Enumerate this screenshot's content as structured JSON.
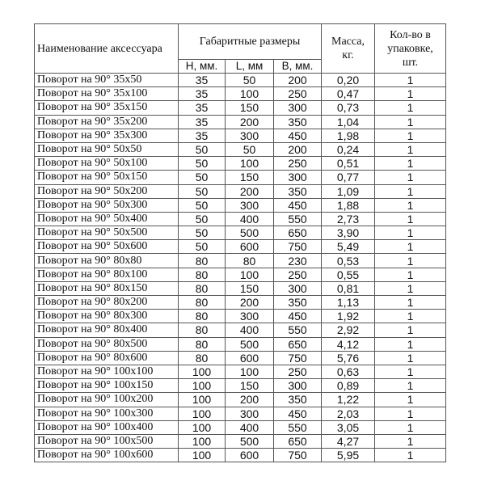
{
  "header": {
    "name": "Наименование аксессуара",
    "dimensions": "Габаритные размеры",
    "mass": "Масса, кг.",
    "qty": "Кол-во в упаковке, шт.",
    "h_label": "H, мм.",
    "l_label": "L, мм",
    "b_label": "B, мм."
  },
  "rows": [
    [
      "Поворот на 90° 35x50",
      "35",
      "50",
      "200",
      "0,20",
      "1"
    ],
    [
      "Поворот на 90° 35x100",
      "35",
      "100",
      "250",
      "0,47",
      "1"
    ],
    [
      "Поворот на 90° 35x150",
      "35",
      "150",
      "300",
      "0,73",
      "1"
    ],
    [
      "Поворот на 90° 35x200",
      "35",
      "200",
      "350",
      "1,04",
      "1"
    ],
    [
      "Поворот на 90° 35x300",
      "35",
      "300",
      "450",
      "1,98",
      "1"
    ],
    [
      "Поворот на 90° 50x50",
      "50",
      "50",
      "200",
      "0,24",
      "1"
    ],
    [
      "Поворот на 90° 50x100",
      "50",
      "100",
      "250",
      "0,51",
      "1"
    ],
    [
      "Поворот на 90° 50x150",
      "50",
      "150",
      "300",
      "0,77",
      "1"
    ],
    [
      "Поворот на 90° 50x200",
      "50",
      "200",
      "350",
      "1,09",
      "1"
    ],
    [
      "Поворот на 90° 50x300",
      "50",
      "300",
      "450",
      "1,88",
      "1"
    ],
    [
      "Поворот на 90° 50x400",
      "50",
      "400",
      "550",
      "2,73",
      "1"
    ],
    [
      "Поворот на 90° 50x500",
      "50",
      "500",
      "650",
      "3,90",
      "1"
    ],
    [
      "Поворот на 90° 50x600",
      "50",
      "600",
      "750",
      "5,49",
      "1"
    ],
    [
      "Поворот на 90° 80x80",
      "80",
      "80",
      "230",
      "0,53",
      "1"
    ],
    [
      "Поворот на 90° 80x100",
      "80",
      "100",
      "250",
      "0,55",
      "1"
    ],
    [
      "Поворот на 90° 80x150",
      "80",
      "150",
      "300",
      "0,81",
      "1"
    ],
    [
      "Поворот на 90° 80x200",
      "80",
      "200",
      "350",
      "1,13",
      "1"
    ],
    [
      "Поворот на 90° 80x300",
      "80",
      "300",
      "450",
      "1,92",
      "1"
    ],
    [
      "Поворот на 90° 80x400",
      "80",
      "400",
      "550",
      "2,92",
      "1"
    ],
    [
      "Поворот на 90° 80x500",
      "80",
      "500",
      "650",
      "4,12",
      "1"
    ],
    [
      "Поворот на 90° 80x600",
      "80",
      "600",
      "750",
      "5,76",
      "1"
    ],
    [
      "Поворот на 90° 100x100",
      "100",
      "100",
      "250",
      "0,63",
      "1"
    ],
    [
      "Поворот на 90° 100x150",
      "100",
      "150",
      "300",
      "0,89",
      "1"
    ],
    [
      "Поворот на 90° 100x200",
      "100",
      "200",
      "350",
      "1,22",
      "1"
    ],
    [
      "Поворот на 90° 100x300",
      "100",
      "300",
      "450",
      "2,03",
      "1"
    ],
    [
      "Поворот на 90° 100x400",
      "100",
      "400",
      "550",
      "3,05",
      "1"
    ],
    [
      "Поворот на 90° 100x500",
      "100",
      "500",
      "650",
      "4,27",
      "1"
    ],
    [
      "Поворот на 90° 100x600",
      "100",
      "600",
      "750",
      "5,95",
      "1"
    ]
  ]
}
